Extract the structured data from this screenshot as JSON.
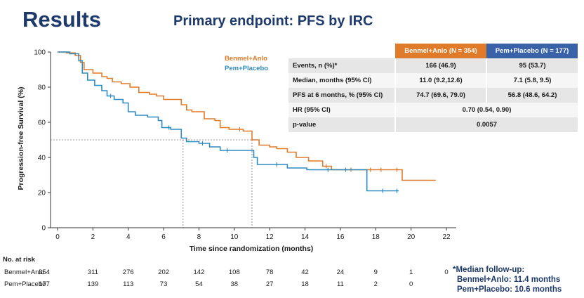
{
  "slide": {
    "title": "Results",
    "subtitle": "Primary endpoint: PFS by IRC"
  },
  "table": {
    "headers": [
      "",
      "Benmel+Anlo (N = 354)",
      "Pem+Placebo (N = 177)"
    ],
    "rows": [
      {
        "label": "Events, n (%)*",
        "benmel": "166 (46.9)",
        "pem": "95 (53.7)"
      },
      {
        "label": "Median, months (95% CI)",
        "benmel": "11.0 (9.2,12.6)",
        "pem": "7.1 (5.8, 9.5)"
      },
      {
        "label": "PFS at 6 months, % (95% CI)",
        "benmel": "74.7 (69.6, 79.0)",
        "pem": "56.8 (48.6, 64.2)"
      },
      {
        "label": "HR (95% CI)",
        "combined": "0.70 (0.54, 0.90)"
      },
      {
        "label": "p-value",
        "combined": "0.0057"
      }
    ]
  },
  "footnote": {
    "line1": "*Median follow-up:",
    "line2": "Benmel+Anlo: 11.4 months",
    "line3": "Pem+Placebo: 10.6 months"
  },
  "colors": {
    "benmel": "#e07b2a",
    "pem": "#2e8bc0",
    "title": "#1d3a6b"
  },
  "chart_data": {
    "type": "line",
    "step": true,
    "xlabel": "Time since randomization (months)",
    "ylabel": "Progression-free Survival (%)",
    "xlim": [
      0,
      22
    ],
    "ylim": [
      0,
      100
    ],
    "xticks": [
      0,
      2,
      4,
      6,
      8,
      10,
      12,
      14,
      16,
      18,
      20,
      22
    ],
    "yticks": [
      0,
      20,
      40,
      60,
      80,
      100
    ],
    "reference_y": 50,
    "medians": [
      7.1,
      11.0
    ],
    "series": [
      {
        "name": "Benmel+Anlo",
        "color": "#e07b2a",
        "points": [
          [
            0,
            100
          ],
          [
            0.5,
            99.5
          ],
          [
            1.0,
            98
          ],
          [
            1.3,
            94
          ],
          [
            1.5,
            90
          ],
          [
            2.0,
            88
          ],
          [
            2.5,
            86
          ],
          [
            2.8,
            85
          ],
          [
            3.1,
            83
          ],
          [
            3.6,
            82
          ],
          [
            4.1,
            80
          ],
          [
            4.6,
            77
          ],
          [
            5.2,
            76
          ],
          [
            5.6,
            75
          ],
          [
            6.0,
            73
          ],
          [
            7.0,
            70
          ],
          [
            7.3,
            67
          ],
          [
            7.6,
            66
          ],
          [
            8.3,
            62
          ],
          [
            8.9,
            61
          ],
          [
            9.2,
            57
          ],
          [
            9.7,
            56
          ],
          [
            10.5,
            55
          ],
          [
            11.0,
            50
          ],
          [
            11.4,
            47
          ],
          [
            12.0,
            46
          ],
          [
            12.4,
            45
          ],
          [
            13.0,
            43
          ],
          [
            13.5,
            40
          ],
          [
            14.2,
            38
          ],
          [
            15.0,
            35
          ],
          [
            15.5,
            33
          ],
          [
            16.2,
            33
          ],
          [
            17.4,
            33
          ],
          [
            19.4,
            33
          ],
          [
            19.5,
            27
          ],
          [
            21.4,
            27
          ]
        ],
        "censor_x": [
          10.3,
          15.2,
          16.6,
          17.7,
          18.3,
          19.2
        ]
      },
      {
        "name": "Pem+Placebo",
        "color": "#2e8bc0",
        "points": [
          [
            0,
            100
          ],
          [
            0.7,
            99
          ],
          [
            1.2,
            95
          ],
          [
            1.4,
            88
          ],
          [
            1.7,
            84
          ],
          [
            2.1,
            81
          ],
          [
            2.5,
            78
          ],
          [
            2.8,
            75
          ],
          [
            3.2,
            73
          ],
          [
            3.7,
            71
          ],
          [
            4.0,
            66
          ],
          [
            4.4,
            64
          ],
          [
            5.1,
            63
          ],
          [
            5.7,
            61
          ],
          [
            5.9,
            57
          ],
          [
            6.4,
            56
          ],
          [
            7.0,
            51
          ],
          [
            7.3,
            49
          ],
          [
            8.0,
            48
          ],
          [
            8.6,
            46
          ],
          [
            9.2,
            44
          ],
          [
            10.3,
            44
          ],
          [
            11.1,
            40
          ],
          [
            11.3,
            36
          ],
          [
            13.0,
            34
          ],
          [
            13.9,
            34
          ],
          [
            14.1,
            33
          ],
          [
            17.0,
            33
          ],
          [
            17.5,
            21
          ],
          [
            19.3,
            21
          ]
        ],
        "censor_x": [
          3.0,
          6.3,
          8.2,
          9.6,
          12.4,
          15.3,
          16.3,
          18.4,
          19.2
        ]
      }
    ]
  },
  "risk_table": {
    "title": "No. at risk",
    "times": [
      0,
      2,
      4,
      6,
      8,
      10,
      12,
      14,
      16,
      18,
      20,
      22
    ],
    "rows": [
      {
        "label": "Benmel+Anlo",
        "counts": [
          "354",
          "311",
          "276",
          "202",
          "142",
          "108",
          "78",
          "42",
          "24",
          "9",
          "1",
          "0"
        ]
      },
      {
        "label": "Pem+Placebo",
        "counts": [
          "177",
          "139",
          "113",
          "73",
          "54",
          "38",
          "27",
          "18",
          "11",
          "2",
          "0"
        ]
      }
    ]
  }
}
